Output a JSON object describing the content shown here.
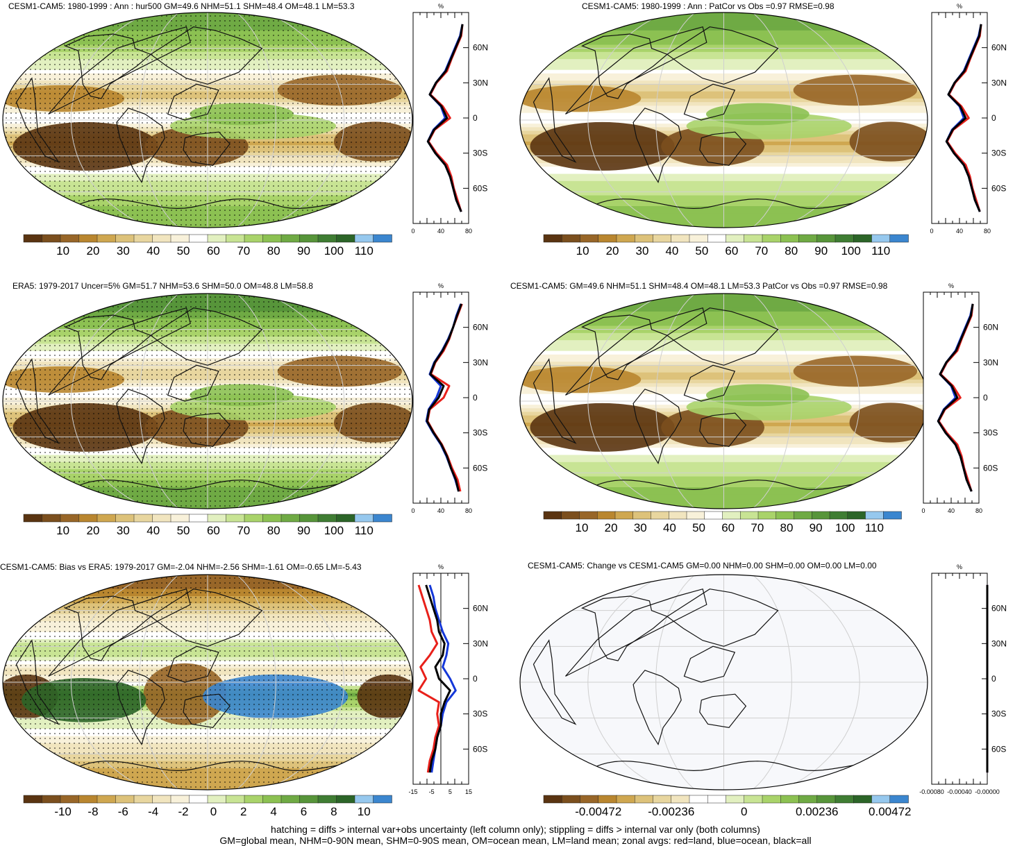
{
  "colors": {
    "brown": [
      "#5a3411",
      "#7b4f1e",
      "#986628",
      "#b9862f",
      "#cfa750",
      "#ddc27a",
      "#e8d69f",
      "#f1e5bf",
      "#f8f1da"
    ],
    "white": "#ffffff",
    "green": [
      "#e2f0c0",
      "#c8e494",
      "#a9d36a",
      "#8cc152",
      "#6faa44",
      "#57953a",
      "#3f7d33",
      "#2c6528"
    ],
    "blue": [
      "#96c8ee",
      "#3b86cf"
    ],
    "zonal_land": "#e8201a",
    "zonal_ocean": "#1437d8",
    "zonal_all": "#000000"
  },
  "panels": [
    {
      "title": "CESM1-CAM5: 1980-1999 : Ann : hur500 GM=49.6 NHM=51.1 SHM=48.4 OM=48.1 LM=53.3",
      "colorbar_labels": [
        "10",
        "20",
        "30",
        "40",
        "50",
        "60",
        "70",
        "80",
        "90",
        "100",
        "110"
      ],
      "zonal_unit": "%",
      "zonal_xticks": [
        "0",
        "40",
        "80"
      ],
      "lat_labels": [
        "60N",
        "30N",
        "0",
        "30S",
        "60S"
      ]
    },
    {
      "title": "CESM1-CAM5: 1980-1999 : Ann : PatCor vs Obs =0.97 RMSE=0.98",
      "colorbar_labels": [
        "10",
        "20",
        "30",
        "40",
        "50",
        "60",
        "70",
        "80",
        "90",
        "100",
        "110"
      ],
      "zonal_unit": "%",
      "zonal_xticks": [
        "0",
        "40",
        "80"
      ],
      "lat_labels": [
        "60N",
        "30N",
        "0",
        "30S",
        "60S"
      ]
    },
    {
      "title": "ERA5: 1979-2017 Uncer=5% GM=51.7 NHM=53.6 SHM=50.0 OM=48.8 LM=58.8",
      "colorbar_labels": [
        "10",
        "20",
        "30",
        "40",
        "50",
        "60",
        "70",
        "80",
        "90",
        "100",
        "110"
      ],
      "zonal_unit": "%",
      "zonal_xticks": [
        "0",
        "40",
        "80"
      ],
      "lat_labels": [
        "60N",
        "30N",
        "0",
        "30S",
        "60S"
      ]
    },
    {
      "title": "CESM1-CAM5: GM=49.6 NHM=51.1 SHM=48.4 OM=48.1 LM=53.3 PatCor vs Obs =0.97 RMSE=0.98",
      "colorbar_labels": [
        "10",
        "20",
        "30",
        "40",
        "50",
        "60",
        "70",
        "80",
        "90",
        "100",
        "110"
      ],
      "zonal_unit": "%",
      "zonal_xticks": [
        "0",
        "40",
        "80"
      ],
      "lat_labels": [
        "60N",
        "30N",
        "0",
        "30S",
        "60S"
      ]
    },
    {
      "title": "CESM1-CAM5: Bias vs ERA5: 1979-2017 GM=-2.04 NHM=-2.56 SHM=-1.61 OM=-0.65 LM=-5.43",
      "colorbar_labels": [
        "-10",
        "-8",
        "-6",
        "-4",
        "-2",
        "0",
        "2",
        "4",
        "6",
        "8",
        "10"
      ],
      "zonal_unit": "%",
      "zonal_xticks": [
        "-15",
        "-5",
        "5",
        "15"
      ],
      "lat_labels": [
        "60N",
        "30N",
        "0",
        "30S",
        "60S"
      ]
    },
    {
      "title": "CESM1-CAM5: Change vs CESM1-CAM5 GM=0.00 NHM=0.00 SHM=0.00 OM=0.00 LM=0.00",
      "colorbar_labels": [
        "-0.00472",
        "-0.00236",
        "0",
        "0.00236",
        "0.00472"
      ],
      "zonal_unit": "%",
      "zonal_xticks": [
        "-0.00080",
        "-0.00040",
        "-0.00000"
      ],
      "lat_labels": [
        "60N",
        "30N",
        "0",
        "30S",
        "60S"
      ]
    }
  ],
  "chart_data": [
    {
      "type": "heatmap",
      "title": "CESM1-CAM5: 1980-1999 : Ann : hur500 GM=49.6 NHM=51.1 SHM=48.4 OM=48.1 LM=53.3",
      "colorbar_ticks": [
        10,
        20,
        30,
        40,
        50,
        60,
        70,
        80,
        90,
        100,
        110
      ],
      "zonal_mean": {
        "lat": [
          -80,
          -70,
          -60,
          -50,
          -40,
          -30,
          -20,
          -10,
          0,
          10,
          20,
          30,
          40,
          50,
          60,
          70,
          80
        ],
        "land": [
          78,
          72,
          66,
          62,
          55,
          38,
          25,
          35,
          60,
          48,
          28,
          38,
          55,
          62,
          70,
          78,
          80
        ],
        "ocean": [
          78,
          70,
          65,
          60,
          52,
          36,
          24,
          33,
          52,
          45,
          27,
          37,
          52,
          60,
          68,
          76,
          80
        ],
        "all": [
          78,
          70,
          65,
          60,
          52,
          36,
          24,
          34,
          55,
          46,
          27,
          37,
          53,
          61,
          69,
          77,
          80
        ],
        "xlim": [
          0,
          90
        ]
      }
    },
    {
      "type": "heatmap",
      "title": "CESM1-CAM5: 1980-1999 : Ann : PatCor vs Obs =0.97 RMSE=0.98",
      "colorbar_ticks": [
        10,
        20,
        30,
        40,
        50,
        60,
        70,
        80,
        90,
        100,
        110
      ],
      "zonal_mean": {
        "lat": [
          -80,
          -70,
          -60,
          -50,
          -40,
          -30,
          -20,
          -10,
          0,
          10,
          20,
          30,
          40,
          50,
          60,
          70,
          80
        ],
        "land": [
          78,
          72,
          66,
          62,
          55,
          38,
          25,
          35,
          60,
          48,
          28,
          38,
          55,
          62,
          70,
          78,
          80
        ],
        "ocean": [
          78,
          70,
          65,
          60,
          52,
          36,
          24,
          33,
          52,
          45,
          27,
          37,
          52,
          60,
          68,
          76,
          80
        ],
        "all": [
          78,
          70,
          65,
          60,
          52,
          36,
          24,
          34,
          55,
          46,
          27,
          37,
          53,
          61,
          69,
          77,
          80
        ],
        "xlim": [
          0,
          90
        ]
      }
    },
    {
      "type": "heatmap",
      "title": "ERA5: 1979-2017 Uncer=5% GM=51.7 NHM=53.6 SHM=50.0 OM=48.8 LM=58.8",
      "colorbar_ticks": [
        10,
        20,
        30,
        40,
        50,
        60,
        70,
        80,
        90,
        100,
        110
      ],
      "zonal_mean": {
        "lat": [
          -80,
          -70,
          -60,
          -50,
          -40,
          -30,
          -20,
          -10,
          0,
          10,
          20,
          30,
          40,
          50,
          60,
          70,
          80
        ],
        "land": [
          85,
          80,
          70,
          62,
          52,
          38,
          26,
          30,
          55,
          65,
          32,
          40,
          55,
          65,
          72,
          80,
          88
        ],
        "ocean": [
          82,
          76,
          68,
          60,
          50,
          36,
          24,
          28,
          42,
          50,
          30,
          38,
          52,
          63,
          72,
          78,
          86
        ],
        "all": [
          82,
          77,
          68,
          61,
          51,
          37,
          25,
          29,
          46,
          55,
          31,
          39,
          53,
          64,
          72,
          79,
          87
        ],
        "xlim": [
          0,
          100
        ]
      }
    },
    {
      "type": "heatmap",
      "title": "CESM1-CAM5: GM=49.6 NHM=51.1 SHM=48.4 OM=48.1 LM=53.3 PatCor vs Obs =0.97 RMSE=0.98",
      "colorbar_ticks": [
        10,
        20,
        30,
        40,
        50,
        60,
        70,
        80,
        90,
        100,
        110
      ],
      "zonal_mean": {
        "lat": [
          -80,
          -70,
          -60,
          -50,
          -40,
          -30,
          -20,
          -10,
          0,
          10,
          20,
          30,
          40,
          50,
          60,
          70,
          80
        ],
        "land": [
          78,
          72,
          66,
          62,
          55,
          38,
          25,
          35,
          60,
          48,
          28,
          38,
          55,
          62,
          70,
          78,
          80
        ],
        "ocean": [
          78,
          70,
          65,
          60,
          52,
          36,
          24,
          33,
          52,
          45,
          27,
          37,
          52,
          60,
          68,
          76,
          80
        ],
        "all": [
          78,
          70,
          65,
          60,
          52,
          36,
          24,
          34,
          55,
          46,
          27,
          37,
          53,
          61,
          69,
          77,
          80
        ],
        "xlim": [
          0,
          90
        ]
      }
    },
    {
      "type": "heatmap",
      "title": "CESM1-CAM5: Bias vs ERA5: 1979-2017 GM=-2.04 NHM=-2.56 SHM=-1.61 OM=-0.65 LM=-5.43",
      "colorbar_ticks": [
        -10,
        -8,
        -6,
        -4,
        -2,
        0,
        2,
        4,
        6,
        8,
        10
      ],
      "zonal_mean": {
        "lat": [
          -80,
          -70,
          -60,
          -50,
          -40,
          -30,
          -20,
          -10,
          0,
          10,
          20,
          30,
          40,
          50,
          60,
          70,
          80
        ],
        "land": [
          -7,
          -6,
          -4,
          -3,
          -1,
          -2,
          -1,
          -12,
          -8,
          -11,
          -6,
          -2,
          -5,
          -6,
          -8,
          -10,
          -12
        ],
        "ocean": [
          -5,
          -4,
          -3,
          -2,
          0,
          1,
          3,
          8,
          5,
          1,
          3,
          4,
          1,
          -1,
          -3,
          -4,
          -6
        ],
        "all": [
          -6,
          -5,
          -3,
          -2,
          0,
          0,
          2,
          5,
          -1,
          -3,
          1,
          2,
          -1,
          -2,
          -4,
          -6,
          -8
        ],
        "xlim": [
          -15,
          15
        ]
      }
    },
    {
      "type": "heatmap",
      "title": "CESM1-CAM5: Change vs CESM1-CAM5 GM=0.00 NHM=0.00 SHM=0.00 OM=0.00 LM=0.00",
      "colorbar_ticks": [
        -0.00472,
        -0.00236,
        0,
        0.00236,
        0.00472
      ],
      "zonal_mean": {
        "lat": [
          -80,
          -70,
          -60,
          -50,
          -40,
          -30,
          -20,
          -10,
          0,
          10,
          20,
          30,
          40,
          50,
          60,
          70,
          80
        ],
        "land": [
          0,
          0,
          0,
          0,
          0,
          0,
          0,
          0,
          0,
          0,
          0,
          0,
          0,
          0,
          0,
          0,
          0
        ],
        "ocean": [
          0,
          0,
          0,
          0,
          0,
          0,
          0,
          0,
          0,
          0,
          0,
          0,
          0,
          0,
          0,
          0,
          0
        ],
        "all": [
          0,
          0,
          0,
          0,
          0,
          0,
          0,
          0,
          0,
          0,
          0,
          0,
          0,
          0,
          0,
          0,
          0
        ],
        "xlim": [
          -0.001,
          0
        ]
      }
    }
  ],
  "footer": {
    "line1": "hatching = diffs > internal var+obs uncertainty (left column only); stippling = diffs > internal var only (both columns)",
    "line2": "GM=global mean, NHM=0-90N mean, SHM=0-90S mean, OM=ocean mean, LM=land mean; zonal avgs: red=land, blue=ocean, black=all"
  }
}
